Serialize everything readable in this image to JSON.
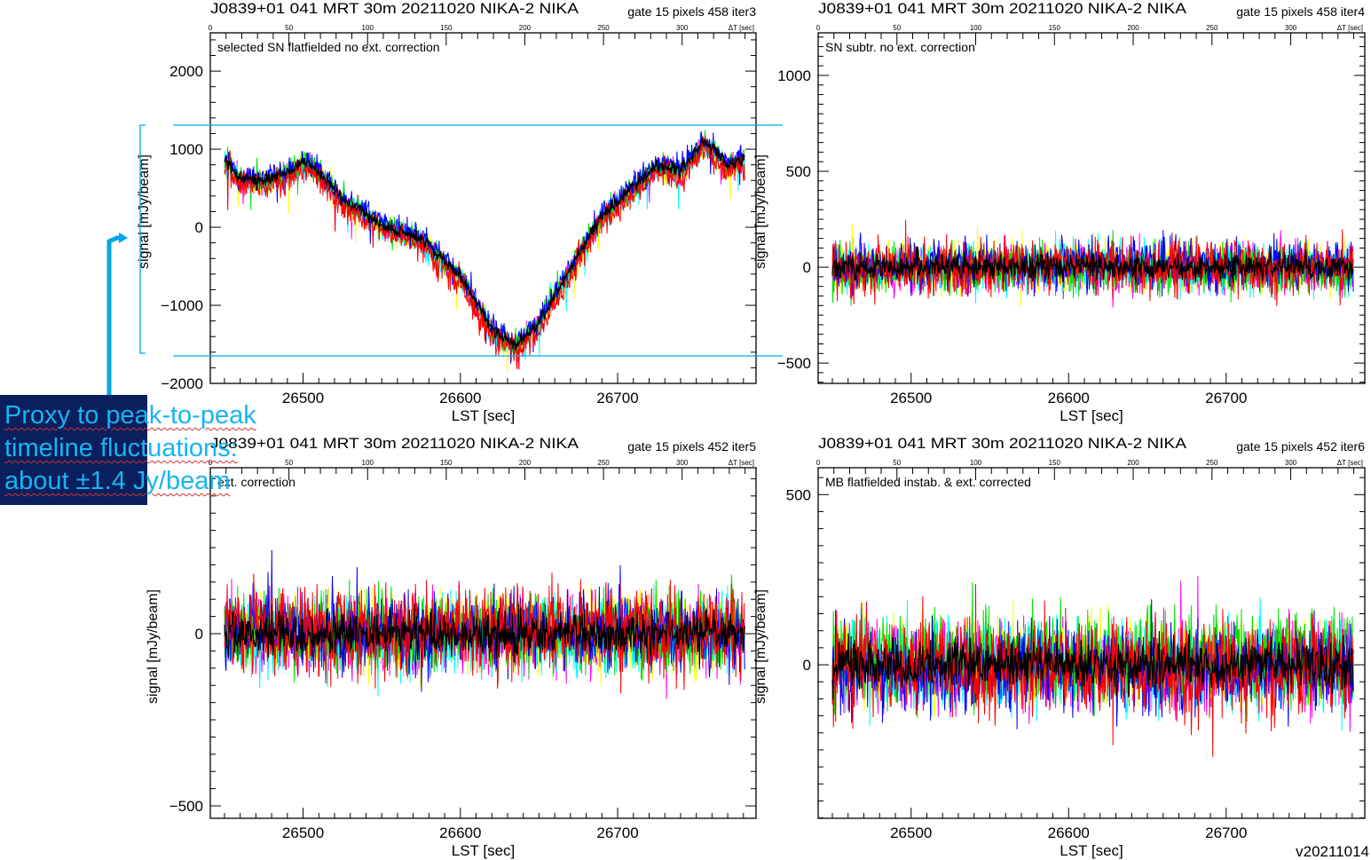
{
  "footer_version": "v20211014",
  "callout": {
    "line1": "Proxy to peak-to-peak",
    "line2": "timeline fluctuations:",
    "line3": "about ±1.4 Jy/beam"
  },
  "colors": {
    "callout_bg": "#0b1f5e",
    "callout_text": "#18b4f0",
    "guide_lines": "#00a6e8"
  },
  "chart_data": [
    {
      "type": "line",
      "title": "J0839+01  041  MRT  30m   20211020  NIKA-2  NIKA",
      "title_right": "gate 15 pixels 458 iter3",
      "subtitle": "selected SN flatfielded no ext. correction",
      "xlabel": "LST [sec]",
      "ylabel": "signal [mJy/beam]",
      "top_axis_label": "ΔT [sec]",
      "top_ticks": [
        "0",
        "50",
        "100",
        "150",
        "200",
        "250",
        "300"
      ],
      "xlim": [
        26441,
        26788
      ],
      "ylim": [
        -2000,
        2490
      ],
      "xticks": [
        26500,
        26600,
        26700
      ],
      "yticks": [
        -2000,
        -1000,
        0,
        1000,
        2000
      ],
      "series": [
        "red",
        "yellow",
        "green",
        "cyan",
        "blue",
        "magenta",
        "black"
      ],
      "noise_amplitude": 110,
      "spread": 180,
      "trend": [
        [
          26450,
          880
        ],
        [
          26460,
          620
        ],
        [
          26475,
          600
        ],
        [
          26490,
          700
        ],
        [
          26500,
          840
        ],
        [
          26510,
          720
        ],
        [
          26525,
          360
        ],
        [
          26550,
          40
        ],
        [
          26575,
          -150
        ],
        [
          26600,
          -620
        ],
        [
          26620,
          -1300
        ],
        [
          26635,
          -1500
        ],
        [
          26650,
          -1220
        ],
        [
          26670,
          -520
        ],
        [
          26690,
          150
        ],
        [
          26710,
          520
        ],
        [
          26725,
          800
        ],
        [
          26740,
          720
        ],
        [
          26755,
          1100
        ],
        [
          26770,
          800
        ],
        [
          26780,
          870
        ]
      ]
    },
    {
      "type": "line",
      "title": "J0839+01  041  MRT  30m   20211020  NIKA-2  NIKA",
      "title_right": "gate 15 pixels 458 iter4",
      "subtitle": "SN subtr. no ext. correction",
      "xlabel": "LST [sec]",
      "ylabel": "signal [mJy/beam]",
      "top_axis_label": "ΔT [sec]",
      "top_ticks": [
        "0",
        "50",
        "100",
        "150",
        "200",
        "250",
        "300"
      ],
      "xlim": [
        26441,
        26788
      ],
      "ylim": [
        -606,
        1222
      ],
      "xticks": [
        26500,
        26600,
        26700
      ],
      "yticks": [
        -500,
        0,
        500,
        1000
      ],
      "series": [
        "red",
        "yellow",
        "green",
        "cyan",
        "blue",
        "magenta",
        "black"
      ],
      "noise_amplitude": 90,
      "spread": 60,
      "trend": [
        [
          26450,
          0
        ],
        [
          26780,
          0
        ]
      ]
    },
    {
      "type": "line",
      "title": "J0839+01  041  MRT  30m   20211020  NIKA-2  NIKA",
      "title_right": "gate 15 pixels 452 iter5",
      "subtitle": "ext. correction",
      "xlabel": "LST [sec]",
      "ylabel": "signal [mJy/beam]",
      "top_axis_label": "ΔT [sec]",
      "top_ticks": [
        "0",
        "50",
        "100",
        "150",
        "200",
        "250",
        "300"
      ],
      "xlim": [
        26441,
        26788
      ],
      "ylim": [
        -536,
        482
      ],
      "xticks": [
        26500,
        26600,
        26700
      ],
      "yticks": [
        -500,
        0
      ],
      "series": [
        "red",
        "yellow",
        "green",
        "cyan",
        "blue",
        "magenta",
        "black"
      ],
      "noise_amplitude": 80,
      "spread": 40,
      "trend": [
        [
          26450,
          0
        ],
        [
          26780,
          0
        ]
      ]
    },
    {
      "type": "line",
      "title": "J0839+01  041  MRT  30m   20211020  NIKA-2  NIKA",
      "title_right": "gate 15 pixels 452 iter6",
      "subtitle": "MB flatfielded instab. & ext. corrected",
      "xlabel": "LST [sec]",
      "ylabel": "signal [mJy/beam]",
      "top_axis_label": "ΔT [sec]",
      "top_ticks": [
        "0",
        "50",
        "100",
        "150",
        "200",
        "250",
        "300"
      ],
      "xlim": [
        26441,
        26788
      ],
      "ylim": [
        -451,
        579
      ],
      "xticks": [
        26500,
        26600,
        26700
      ],
      "yticks": [
        0,
        500
      ],
      "series": [
        "red",
        "yellow",
        "green",
        "cyan",
        "blue",
        "magenta",
        "black"
      ],
      "noise_amplitude": 90,
      "spread": 40,
      "trend": [
        [
          26450,
          0
        ],
        [
          26780,
          0
        ]
      ]
    }
  ]
}
